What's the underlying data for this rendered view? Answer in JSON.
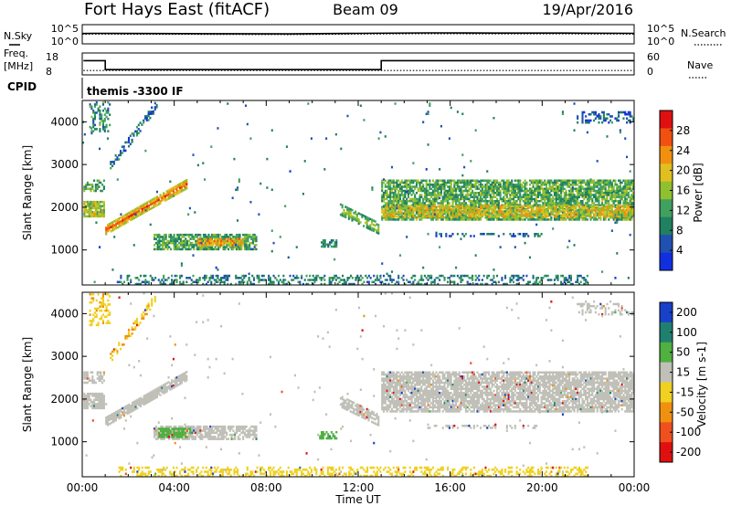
{
  "header": {
    "station": "Fort Hays East (fitACF)",
    "beam": "Beam 09",
    "date": "19/Apr/2016"
  },
  "side_labels": {
    "nsky": "N.Sky",
    "nsearch": "N.Search",
    "freq_line1": "Freq.",
    "freq_line2": "[MHz]",
    "nave": "Nave",
    "cpid": "CPID"
  },
  "colors": {
    "frame": "#000000",
    "background": "#ffffff",
    "velocity_ground": "#c0c0b8",
    "power_scale": [
      "#1030e0",
      "#2050b0",
      "#208060",
      "#40a060",
      "#90c030",
      "#e0c020",
      "#f09010",
      "#f05010",
      "#e01010"
    ],
    "velocity_scale": [
      "#1840c8",
      "#208070",
      "#50b040",
      "#c0c0b8",
      "#f0d020",
      "#f09010",
      "#f05020",
      "#e01010"
    ]
  },
  "chart_data": [
    {
      "type": "line",
      "name": "noise-panel",
      "yticks_left": [
        "10^5",
        "10^0"
      ],
      "yticks_right": [
        "10^5",
        "10^0"
      ],
      "series": [
        {
          "name": "N.Sky",
          "style": "solid",
          "x": [
            0,
            0.5,
            3,
            6,
            9,
            12,
            15,
            18,
            21,
            24
          ],
          "y": [
            2.7,
            2.75,
            2.7,
            2.65,
            2.6,
            2.75,
            2.85,
            2.8,
            2.8,
            2.75
          ]
        },
        {
          "name": "N.Search",
          "style": "dotted",
          "x": [
            0,
            0.5,
            3,
            6,
            9,
            12,
            15,
            18,
            21,
            24
          ],
          "y": [
            2.5,
            2.55,
            2.5,
            2.45,
            2.4,
            2.55,
            2.65,
            2.6,
            2.6,
            2.55
          ]
        }
      ]
    },
    {
      "type": "line",
      "name": "freq-nave-panel",
      "yticks_left": [
        "18",
        "8"
      ],
      "yticks_right": [
        "60",
        "0"
      ],
      "series": [
        {
          "name": "Freq.",
          "style": "solid",
          "x": [
            0.05,
            1.0,
            1.0,
            13.0,
            13.0,
            24
          ],
          "y": [
            14.5,
            14.5,
            10.4,
            10.4,
            14.5,
            14.5
          ]
        },
        {
          "name": "Nave",
          "style": "dotted",
          "x": [
            0.05,
            24
          ],
          "y": [
            10,
            10
          ]
        }
      ]
    },
    {
      "type": "text",
      "name": "cpid-panel",
      "label": "themis -3300 IF"
    },
    {
      "type": "heatmap",
      "name": "power-panel",
      "xlabel": "",
      "ylabel": "Slant Range [km]",
      "xlim": [
        0,
        24
      ],
      "ylim": [
        180,
        4500
      ],
      "yticks": [
        1000,
        2000,
        3000,
        4000
      ],
      "colorbar": {
        "label": "Power [dB]",
        "ticks": [
          4,
          8,
          12,
          16,
          20,
          24,
          28
        ],
        "range": [
          0,
          32
        ]
      },
      "features": [
        {
          "t0": 0.05,
          "t1": 1.0,
          "r0": 1780,
          "r1": 2150,
          "v": 17,
          "density": 0.85
        },
        {
          "t0": 0.05,
          "t1": 1.0,
          "r0": 2350,
          "r1": 2650,
          "v": 12,
          "density": 0.55
        },
        {
          "t0": 0.3,
          "t1": 1.2,
          "r0": 3700,
          "r1": 4480,
          "v": 10,
          "density": 0.35
        },
        {
          "t0": 1.0,
          "t1": 4.6,
          "r_start": 1450,
          "r_end": 2550,
          "width": 260,
          "v_core": 27,
          "v_edge": 15,
          "density": 0.9
        },
        {
          "t0": 1.2,
          "t1": 3.3,
          "r_start": 2950,
          "r_end": 4450,
          "width": 220,
          "v": 7,
          "density": 0.45
        },
        {
          "t0": 3.1,
          "t1": 7.6,
          "r0": 1020,
          "r1": 1380,
          "v": 12,
          "density": 0.75
        },
        {
          "t0": 5.0,
          "t1": 7.0,
          "r0": 1080,
          "r1": 1280,
          "v": 21,
          "density": 0.8
        },
        {
          "t0": 10.3,
          "t1": 11.1,
          "r0": 1050,
          "r1": 1250,
          "v": 9,
          "density": 0.55
        },
        {
          "t0": 11.2,
          "t1": 12.9,
          "r_start": 1950,
          "r_end": 1500,
          "width": 300,
          "v_core": 18,
          "v_edge": 9,
          "density": 0.7
        },
        {
          "t0": 13.0,
          "t1": 24,
          "r0": 1680,
          "r1": 2650,
          "v": 13,
          "density": 0.78
        },
        {
          "t0": 13.0,
          "t1": 24,
          "r0": 1780,
          "r1": 2050,
          "v": 19,
          "density": 0.7
        },
        {
          "t0": 15.0,
          "t1": 20.0,
          "r0": 1280,
          "r1": 1400,
          "v": 6,
          "density": 0.35
        },
        {
          "t0": 21.5,
          "t1": 24,
          "r0": 3950,
          "r1": 4250,
          "v": 6,
          "density": 0.3
        },
        {
          "t0": 1.5,
          "t1": 22.0,
          "r0": 190,
          "r1": 420,
          "v": 9,
          "density": 0.35
        },
        {
          "t0": 0.0,
          "t1": 24.0,
          "r0": 180,
          "r1": 4500,
          "v": 8,
          "density": 0.006
        }
      ]
    },
    {
      "type": "heatmap",
      "name": "velocity-panel",
      "xlabel": "Time UT",
      "ylabel": "Slant Range [km]",
      "xlim": [
        0,
        24
      ],
      "ylim": [
        180,
        4500
      ],
      "xticks": [
        "00:00",
        "04:00",
        "08:00",
        "12:00",
        "16:00",
        "20:00",
        "00:00"
      ],
      "yticks": [
        1000,
        2000,
        3000,
        4000
      ],
      "colorbar": {
        "label": "Velocity [m s-1]",
        "ticks": [
          200,
          100,
          50,
          15,
          -15,
          -50,
          -100,
          -200
        ],
        "range": [
          -250,
          250
        ]
      },
      "features": [
        {
          "t0": 0.05,
          "t1": 1.0,
          "r0": 1780,
          "r1": 2150,
          "v": 0,
          "density": 0.85
        },
        {
          "t0": 0.05,
          "t1": 1.0,
          "r0": 2350,
          "r1": 2650,
          "v": 0,
          "density": 0.55
        },
        {
          "t0": 0.3,
          "t1": 1.2,
          "r0": 3700,
          "r1": 4480,
          "v": -40,
          "density": 0.35
        },
        {
          "t0": 1.0,
          "t1": 4.6,
          "r_start": 1450,
          "r_end": 2550,
          "width": 260,
          "v": 0,
          "density": 0.9
        },
        {
          "t0": 1.2,
          "t1": 3.3,
          "r_start": 2950,
          "r_end": 4450,
          "width": 220,
          "v": -45,
          "density": 0.45
        },
        {
          "t0": 3.1,
          "t1": 7.6,
          "r0": 1020,
          "r1": 1380,
          "v": 0,
          "density": 0.75
        },
        {
          "t0": 3.3,
          "t1": 4.7,
          "r0": 1080,
          "r1": 1330,
          "v": 35,
          "density": 0.75
        },
        {
          "t0": 10.3,
          "t1": 11.1,
          "r0": 1050,
          "r1": 1250,
          "v": 35,
          "density": 0.6
        },
        {
          "t0": 11.2,
          "t1": 12.9,
          "r_start": 1950,
          "r_end": 1500,
          "width": 300,
          "v": 0,
          "density": 0.7
        },
        {
          "t0": 13.0,
          "t1": 24,
          "r0": 1680,
          "r1": 2650,
          "v": 0,
          "density": 0.78
        },
        {
          "t0": 15.0,
          "t1": 20.0,
          "r0": 1280,
          "r1": 1400,
          "v": 0,
          "density": 0.35
        },
        {
          "t0": 21.5,
          "t1": 24,
          "r0": 3950,
          "r1": 4250,
          "v": 0,
          "density": 0.3
        },
        {
          "t0": 1.5,
          "t1": 22.0,
          "r0": 190,
          "r1": 420,
          "v": -30,
          "density": 0.35
        },
        {
          "t0": 0.0,
          "t1": 24.0,
          "r0": 180,
          "r1": 4500,
          "v": 0,
          "density": 0.006
        }
      ]
    }
  ]
}
